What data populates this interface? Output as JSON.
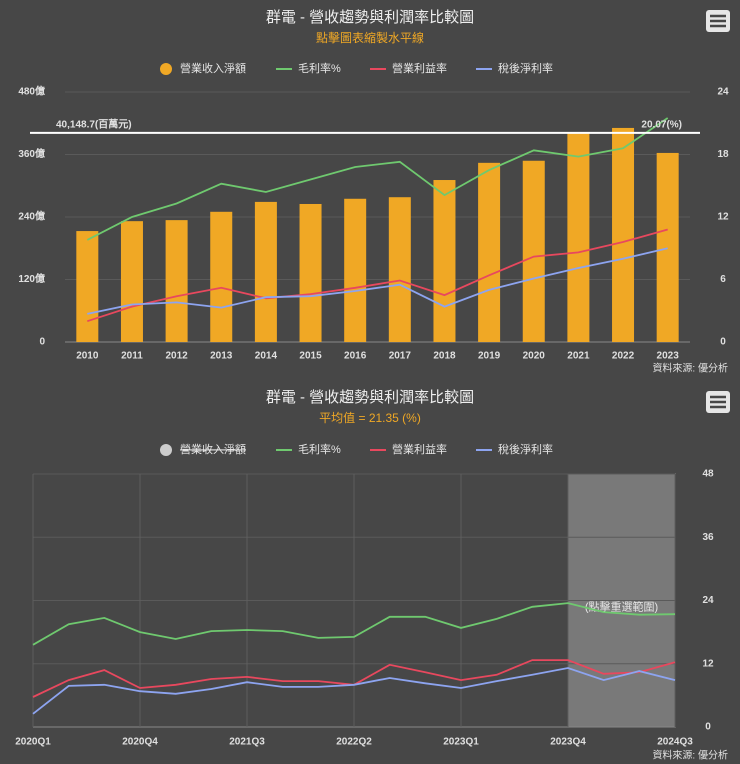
{
  "chart_data": [
    {
      "type": "bar",
      "title": "群電 - 營收趨勢與利潤率比較圖",
      "subtitle": "點擊圖表縮製水平線",
      "source": "資料來源: 優分析",
      "categories": [
        "2010",
        "2011",
        "2012",
        "2013",
        "2014",
        "2015",
        "2016",
        "2017",
        "2018",
        "2019",
        "2020",
        "2021",
        "2022",
        "2023"
      ],
      "series": [
        {
          "name": "營業收入淨額",
          "type": "bar",
          "axis": "y",
          "color": "#f0a825",
          "values": [
            213,
            232,
            234,
            250,
            269,
            265,
            275,
            278,
            311,
            344,
            348,
            401,
            411,
            363
          ]
        },
        {
          "name": "毛利率%",
          "type": "line",
          "axis": "y2",
          "color": "#6fc96f",
          "values": [
            9.8,
            12.0,
            13.3,
            15.2,
            14.4,
            15.6,
            16.8,
            17.3,
            14.1,
            16.5,
            18.4,
            17.8,
            18.6,
            21.5
          ]
        },
        {
          "name": "營業利益率",
          "type": "line",
          "axis": "y2",
          "color": "#e8485e",
          "values": [
            2.0,
            3.4,
            4.4,
            5.2,
            4.2,
            4.6,
            5.2,
            5.9,
            4.5,
            6.4,
            8.2,
            8.6,
            9.6,
            10.8
          ]
        },
        {
          "name": "稅後淨利率",
          "type": "line",
          "axis": "y2",
          "color": "#8da4f0",
          "values": [
            2.7,
            3.6,
            3.8,
            3.3,
            4.3,
            4.4,
            4.9,
            5.5,
            3.4,
            5.0,
            6.1,
            7.1,
            8.0,
            9.0
          ]
        }
      ],
      "ylim": [
        0,
        480
      ],
      "yticks": [
        0,
        {
          "value": 120,
          "label": "120億"
        },
        {
          "value": 240,
          "label": "240億"
        },
        {
          "value": 360,
          "label": "360億"
        },
        {
          "value": 480,
          "label": "480億"
        }
      ],
      "y2lim": [
        0,
        24
      ],
      "y2ticks": [
        0,
        6,
        12,
        18,
        24
      ],
      "grid": true,
      "reference_line": {
        "value": 401.487,
        "label": "40,148.7(百萬元)",
        "value2": 20.07,
        "label2": "20.07(%)"
      }
    },
    {
      "type": "line",
      "title": "群電 - 營收趨勢與利潤率比較圖",
      "subtitle": "平均值 = 21.35 (%)",
      "source": "資料來源: 優分析",
      "categories": [
        "2020Q1",
        null,
        null,
        "2020Q4",
        null,
        null,
        "2021Q3",
        null,
        null,
        "2022Q2",
        null,
        null,
        "2023Q1",
        null,
        null,
        "2023Q4",
        null,
        null,
        "2024Q3"
      ],
      "series": [
        {
          "name": "營業收入淨額",
          "color": "#cccccc",
          "visible": false
        },
        {
          "name": "毛利率%",
          "axis": "y2",
          "color": "#6fc96f",
          "values": [
            15.6,
            19.5,
            20.7,
            18.0,
            16.7,
            18.2,
            18.4,
            18.2,
            16.9,
            17.1,
            20.9,
            20.9,
            18.8,
            20.5,
            22.8,
            23.5,
            21.8,
            21.3,
            21.4
          ]
        },
        {
          "name": "營業利益率",
          "axis": "y2",
          "color": "#e8485e",
          "values": [
            5.7,
            8.9,
            10.8,
            7.4,
            8.0,
            9.1,
            9.5,
            8.7,
            8.7,
            8.0,
            11.8,
            10.4,
            8.9,
            9.9,
            12.7,
            12.7,
            10.1,
            10.4,
            12.3
          ]
        },
        {
          "name": "稅後淨利率",
          "axis": "y2",
          "color": "#8da4f0",
          "values": [
            2.5,
            7.8,
            8.0,
            6.8,
            6.3,
            7.2,
            8.5,
            7.6,
            7.6,
            8.0,
            9.3,
            8.3,
            7.4,
            8.7,
            9.9,
            11.2,
            8.9,
            10.6,
            8.9
          ]
        }
      ],
      "y2lim": [
        0,
        48
      ],
      "y2ticks": [
        0,
        12,
        24,
        36,
        48
      ],
      "grid": true,
      "x_grid": true,
      "selection": {
        "label": "(點擊重選範圍)",
        "range": [
          "2023Q4",
          "2024Q3"
        ]
      }
    }
  ]
}
